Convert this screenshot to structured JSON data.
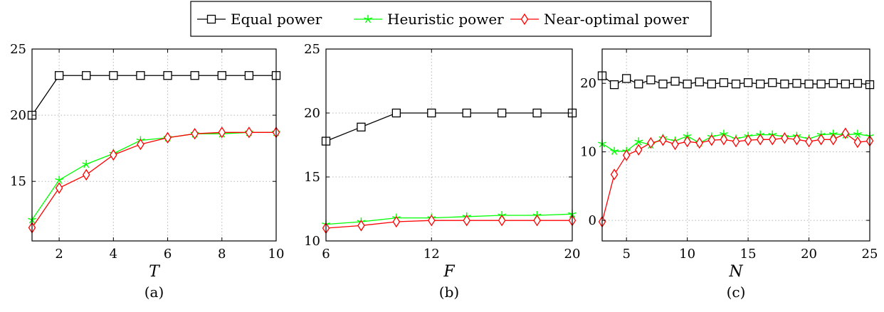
{
  "legend": {
    "entries": [
      {
        "label": "Equal power",
        "color": "#000000",
        "marker": "square"
      },
      {
        "label": "Heuristic power",
        "color": "#00ff00",
        "marker": "star"
      },
      {
        "label": "Near-optimal power",
        "color": "#ff0000",
        "marker": "diamond"
      }
    ]
  },
  "chart_data": [
    {
      "type": "line",
      "caption": "(a)",
      "xlabel": "T",
      "ylabel": "",
      "xlim": [
        1,
        10
      ],
      "ylim": [
        10.5,
        25
      ],
      "xticks": [
        2,
        4,
        6,
        8,
        10
      ],
      "yticks": [
        15,
        20,
        25
      ],
      "grid": true,
      "series": [
        {
          "name": "Equal power",
          "color": "#000000",
          "marker": "square",
          "x": [
            1,
            2,
            3,
            4,
            5,
            6,
            7,
            8,
            9,
            10
          ],
          "y": [
            20,
            23,
            23,
            23,
            23,
            23,
            23,
            23,
            23,
            23
          ]
        },
        {
          "name": "Heuristic power",
          "color": "#00ff00",
          "marker": "star",
          "x": [
            1,
            2,
            3,
            4,
            5,
            6,
            7,
            8,
            9,
            10
          ],
          "y": [
            12.1,
            15.1,
            16.3,
            17.1,
            18.1,
            18.3,
            18.6,
            18.6,
            18.7,
            18.7
          ]
        },
        {
          "name": "Near-optimal power",
          "color": "#ff0000",
          "marker": "diamond",
          "x": [
            1,
            2,
            3,
            4,
            5,
            6,
            7,
            8,
            9,
            10
          ],
          "y": [
            11.5,
            14.5,
            15.5,
            17.0,
            17.8,
            18.3,
            18.6,
            18.7,
            18.7,
            18.7
          ]
        }
      ]
    },
    {
      "type": "line",
      "caption": "(b)",
      "xlabel": "F",
      "ylabel": "",
      "xlim": [
        6,
        20
      ],
      "ylim": [
        10,
        25
      ],
      "xticks": [
        6,
        12,
        20
      ],
      "yticks": [
        10,
        15,
        20,
        25
      ],
      "grid": true,
      "series": [
        {
          "name": "Equal power",
          "color": "#000000",
          "marker": "square",
          "x": [
            6,
            8,
            10,
            12,
            14,
            16,
            18,
            20
          ],
          "y": [
            17.8,
            18.9,
            20,
            20,
            20,
            20,
            20,
            20
          ]
        },
        {
          "name": "Heuristic power",
          "color": "#00ff00",
          "marker": "star",
          "x": [
            6,
            8,
            10,
            12,
            14,
            16,
            18,
            20
          ],
          "y": [
            11.3,
            11.5,
            11.8,
            11.8,
            11.9,
            12.0,
            12.0,
            12.1
          ]
        },
        {
          "name": "Near-optimal power",
          "color": "#ff0000",
          "marker": "diamond",
          "x": [
            6,
            8,
            10,
            12,
            14,
            16,
            18,
            20
          ],
          "y": [
            11.0,
            11.2,
            11.5,
            11.6,
            11.6,
            11.6,
            11.6,
            11.6
          ]
        }
      ]
    },
    {
      "type": "line",
      "caption": "(c)",
      "xlabel": "N",
      "ylabel": "",
      "xlim": [
        3,
        25
      ],
      "ylim": [
        -3,
        25
      ],
      "xticks": [
        5,
        10,
        15,
        20,
        25
      ],
      "yticks": [
        0,
        10,
        20
      ],
      "grid": true,
      "series": [
        {
          "name": "Equal power",
          "color": "#000000",
          "marker": "square",
          "x": [
            3,
            4,
            5,
            6,
            7,
            8,
            9,
            10,
            11,
            12,
            13,
            14,
            15,
            16,
            17,
            18,
            19,
            20,
            21,
            22,
            23,
            24,
            25
          ],
          "y": [
            21.1,
            19.8,
            20.7,
            19.9,
            20.5,
            19.9,
            20.3,
            19.9,
            20.2,
            19.9,
            20.1,
            19.9,
            20.1,
            19.9,
            20.1,
            19.9,
            20.0,
            19.9,
            19.9,
            20.0,
            19.9,
            20.0,
            19.8
          ]
        },
        {
          "name": "Heuristic power",
          "color": "#00ff00",
          "marker": "star",
          "x": [
            3,
            4,
            5,
            6,
            7,
            8,
            9,
            10,
            11,
            12,
            13,
            14,
            15,
            16,
            17,
            18,
            19,
            20,
            21,
            22,
            23,
            24,
            25
          ],
          "y": [
            11.2,
            10.1,
            10.1,
            11.5,
            11.0,
            12.0,
            11.6,
            12.3,
            11.3,
            12.2,
            12.6,
            11.9,
            12.3,
            12.5,
            12.5,
            12.2,
            12.3,
            11.9,
            12.5,
            12.6,
            12.5,
            12.6,
            12.3
          ]
        },
        {
          "name": "Near-optimal power",
          "color": "#ff0000",
          "marker": "diamond",
          "x": [
            3,
            4,
            5,
            6,
            7,
            8,
            9,
            10,
            11,
            12,
            13,
            14,
            15,
            16,
            17,
            18,
            19,
            20,
            21,
            22,
            23,
            24,
            25
          ],
          "y": [
            -0.2,
            6.7,
            9.5,
            10.3,
            11.3,
            11.7,
            11.1,
            11.5,
            11.3,
            11.7,
            11.8,
            11.5,
            11.7,
            11.8,
            11.8,
            12.0,
            11.8,
            11.5,
            11.8,
            11.8,
            12.7,
            11.4,
            11.6
          ]
        }
      ]
    }
  ]
}
